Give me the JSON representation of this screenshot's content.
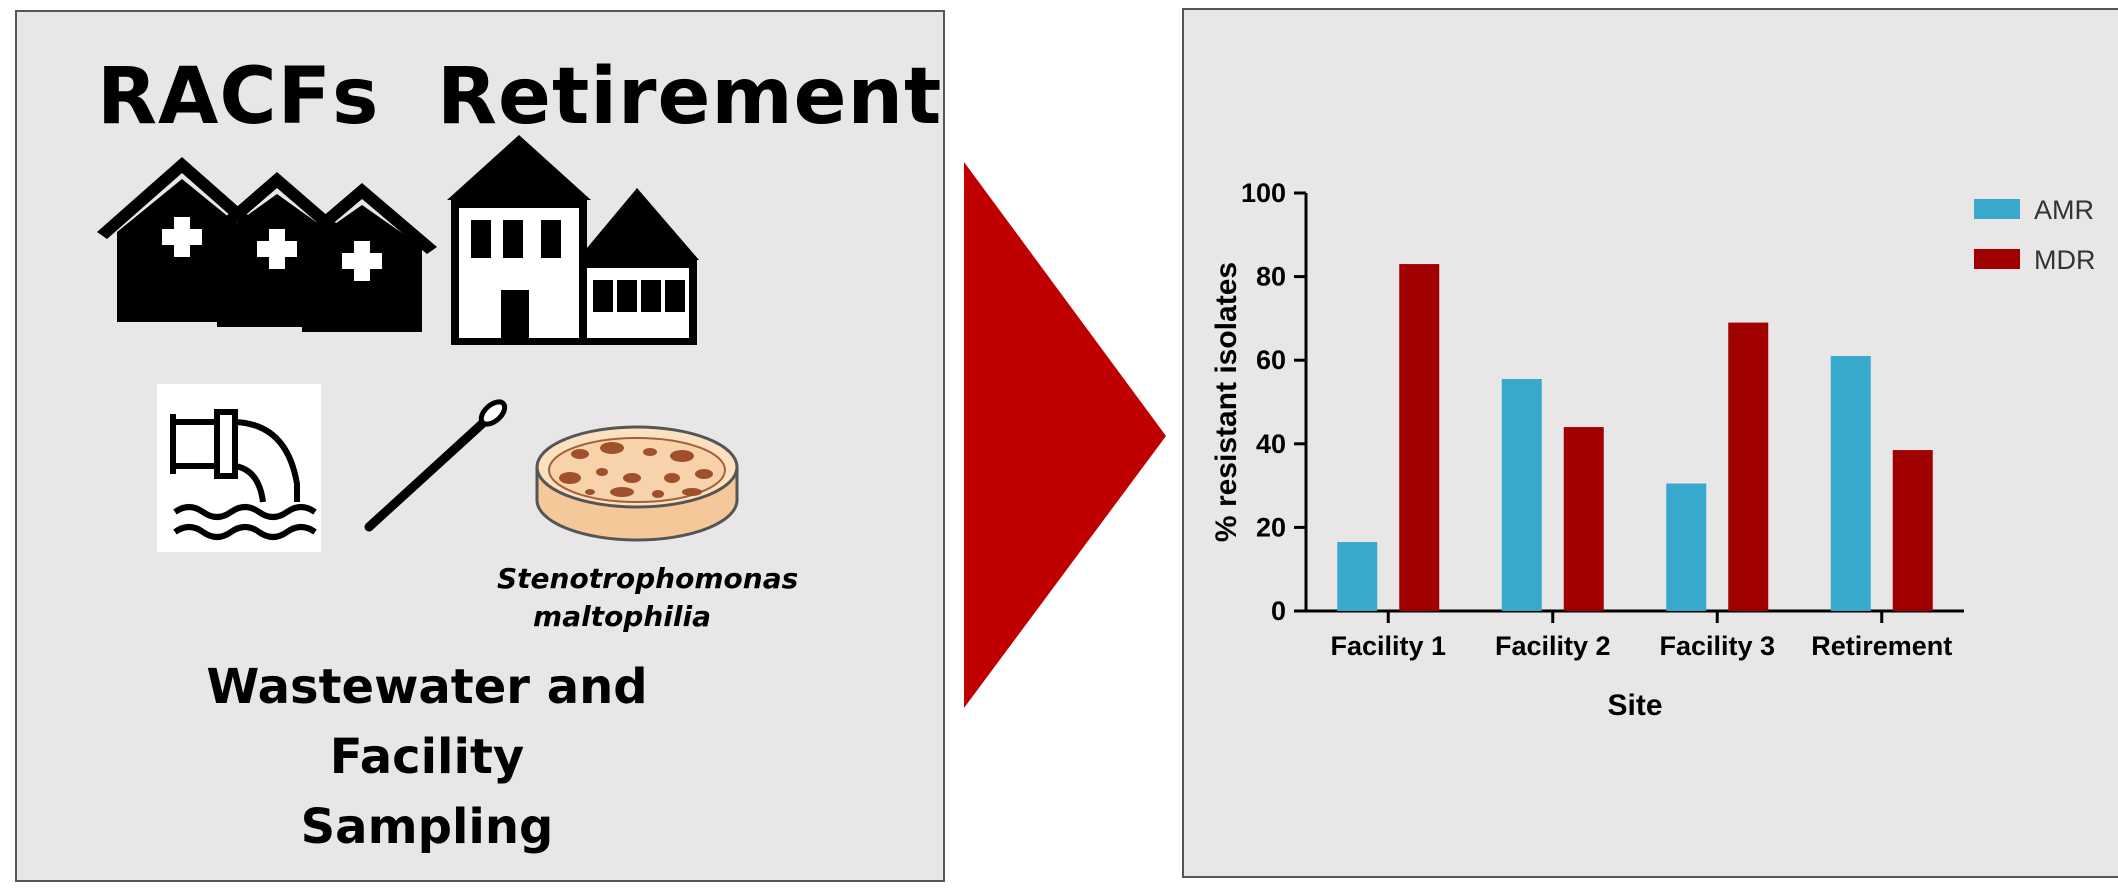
{
  "left": {
    "label_racfs": "RACFs",
    "label_retirement": "Retirement",
    "species_line1": "Stenotrophomonas",
    "species_line2": "maltophilia",
    "caption_line1": "Wastewater and Facility",
    "caption_line2": "Sampling"
  },
  "arrow_color": "#c00000",
  "chart_data": {
    "type": "bar",
    "categories": [
      "Facility 1",
      "Facility 2",
      "Facility 3",
      "Retirement"
    ],
    "series": [
      {
        "name": "AMR",
        "color": "#38a9cd",
        "values": [
          16.5,
          55.5,
          30.5,
          61
        ]
      },
      {
        "name": "MDR",
        "color": "#a00000",
        "values": [
          83,
          44,
          69,
          38.5
        ]
      }
    ],
    "xlabel": "Site",
    "ylabel": "% resistant isolates",
    "ylim": [
      0,
      100
    ],
    "yticks": [
      0,
      20,
      40,
      60,
      80,
      100
    ],
    "legend": "top-right"
  }
}
